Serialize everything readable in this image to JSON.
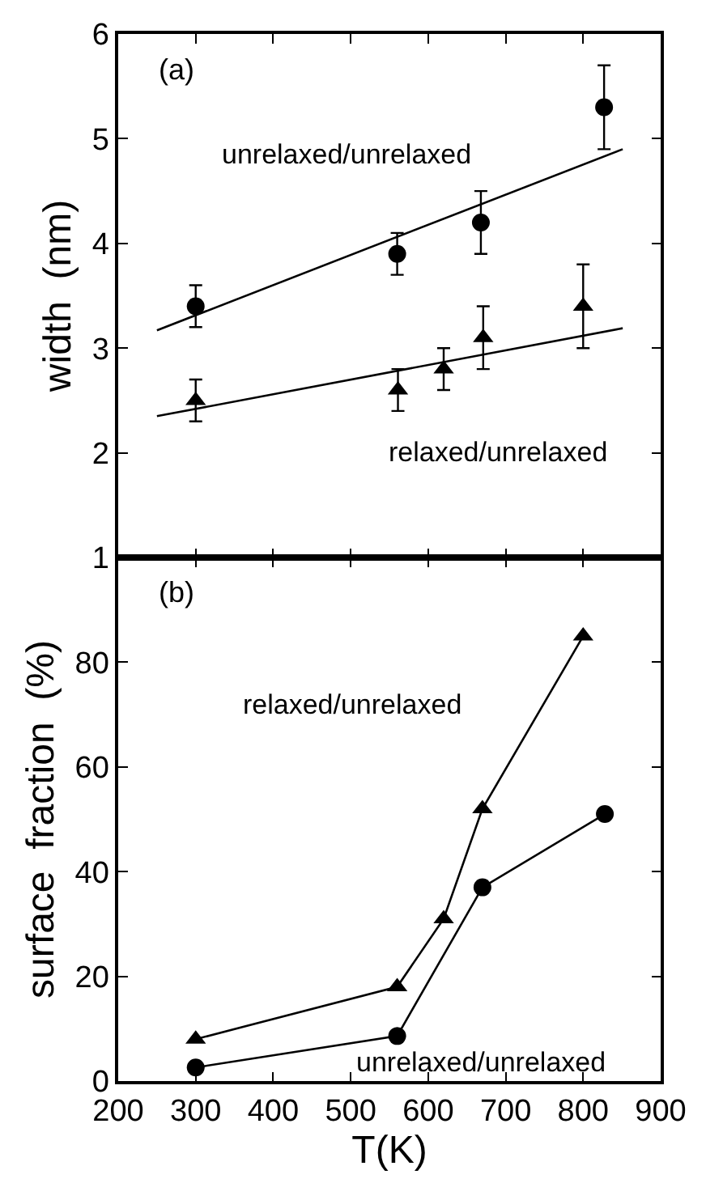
{
  "chart_data": [
    {
      "type": "scatter",
      "ylabel": "width  (nm)",
      "xlim": [
        200,
        900
      ],
      "xticks": [
        200,
        300,
        400,
        500,
        600,
        700,
        800,
        900
      ],
      "ylim": [
        1,
        6
      ],
      "yticks": [
        1,
        2,
        3,
        4,
        5,
        6
      ],
      "tick_labels": "y",
      "legend": false,
      "annotations": [
        "(a)",
        "unrelaxed/unrelaxed",
        "relaxed/unrelaxed"
      ],
      "series": [
        {
          "marker": "circle",
          "color": "#000000",
          "x": [
            300,
            560,
            668,
            827
          ],
          "values": [
            3.4,
            3.9,
            4.2,
            5.3
          ],
          "errors": [
            [
              3.2,
              3.6
            ],
            [
              3.7,
              4.1
            ],
            [
              3.9,
              4.5
            ],
            [
              4.9,
              5.7
            ]
          ]
        },
        {
          "marker": "triangle",
          "color": "#000000",
          "x": [
            300,
            561,
            620,
            671,
            800
          ],
          "values": [
            2.5,
            2.6,
            2.8,
            3.1,
            3.4
          ],
          "errors": [
            [
              2.3,
              2.7
            ],
            [
              2.4,
              2.8
            ],
            [
              2.6,
              3.0
            ],
            [
              2.8,
              3.4
            ],
            [
              3.0,
              3.8
            ]
          ]
        },
        {
          "type": "line",
          "marker": "none",
          "line_style": "solid",
          "color": "#000000",
          "x": [
            250,
            851
          ],
          "values": [
            3.17,
            4.9
          ]
        },
        {
          "type": "line",
          "marker": "none",
          "line_style": "solid",
          "color": "#000000",
          "x": [
            250,
            851
          ],
          "values": [
            2.35,
            3.19
          ]
        }
      ]
    },
    {
      "type": "line",
      "xlabel": "T(K)",
      "ylabel": "surface  fraction  (%)",
      "xlim": [
        200,
        900
      ],
      "xticks": [
        200,
        300,
        400,
        500,
        600,
        700,
        800,
        900
      ],
      "ylim": [
        0,
        100
      ],
      "yticks": [
        0,
        20,
        40,
        60,
        80
      ],
      "legend": false,
      "annotations": [
        "(b)",
        "relaxed/unrelaxed",
        "unrelaxed/unrelaxed"
      ],
      "series": [
        {
          "marker": "triangle",
          "line_style": "solid",
          "color": "#000000",
          "x": [
            300,
            560,
            620,
            670,
            800
          ],
          "values": [
            8,
            18,
            31,
            52,
            85
          ]
        },
        {
          "marker": "circle",
          "line_style": "solid",
          "color": "#000000",
          "x": [
            300,
            560,
            670,
            828
          ],
          "values": [
            2.6,
            8.6,
            37,
            51
          ]
        }
      ]
    }
  ]
}
